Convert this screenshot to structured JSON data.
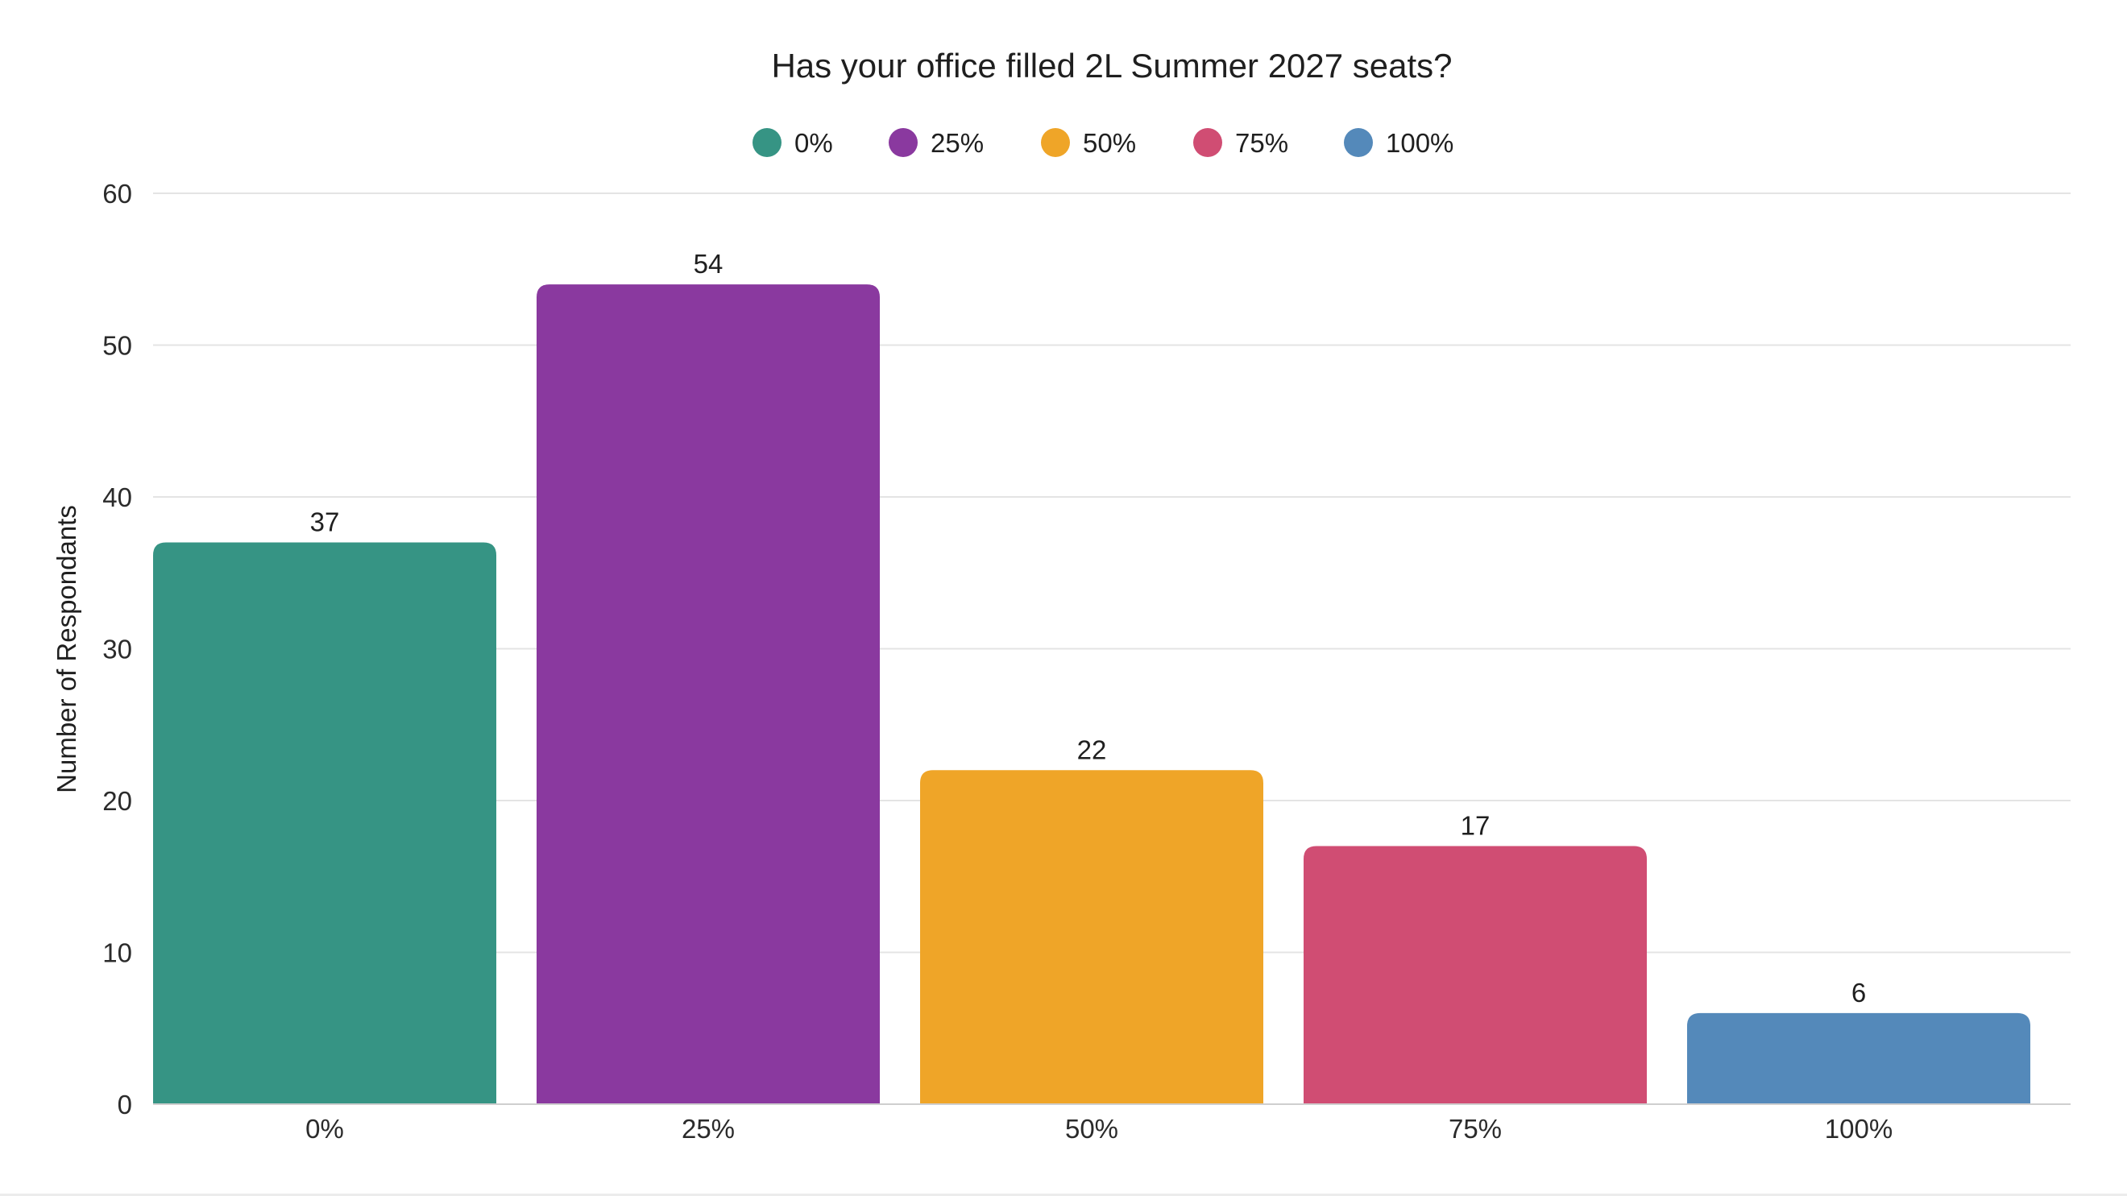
{
  "chart_data": {
    "type": "bar",
    "title": "Has your office filled 2L Summer 2027 seats?",
    "xlabel": "",
    "ylabel": "Number of Respondants",
    "categories": [
      "0%",
      "25%",
      "50%",
      "75%",
      "100%"
    ],
    "values": [
      37,
      54,
      22,
      17,
      6
    ],
    "colors": [
      "#369484",
      "#8A399F",
      "#EFA528",
      "#D04D73",
      "#5489BA"
    ],
    "ylim": [
      0,
      60
    ],
    "yticks": [
      0,
      10,
      20,
      30,
      40,
      50,
      60
    ],
    "grid": true,
    "legend": {
      "position": "top-center",
      "entries": [
        "0%",
        "25%",
        "50%",
        "75%",
        "100%"
      ]
    },
    "data_labels": true
  }
}
